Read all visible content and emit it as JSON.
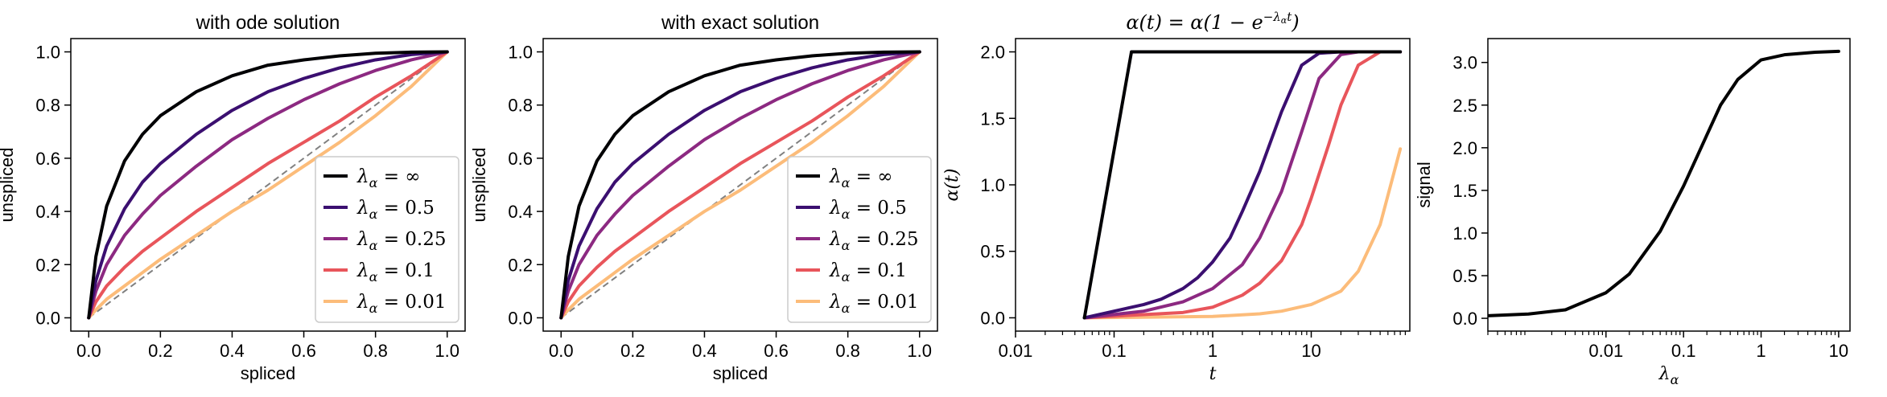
{
  "chart_data": [
    {
      "type": "line",
      "title": "with ode solution",
      "xlabel": "spliced",
      "ylabel": "unspliced",
      "xlim": [
        -0.05,
        1.05
      ],
      "ylim": [
        -0.05,
        1.05
      ],
      "xticks": [
        0,
        0.2,
        0.4,
        0.6,
        0.8,
        1.0
      ],
      "xtick_labels": [
        "0.0",
        "0.2",
        "0.4",
        "0.6",
        "0.8",
        "1.0"
      ],
      "yticks": [
        0,
        0.2,
        0.4,
        0.6,
        0.8,
        1.0
      ],
      "ytick_labels": [
        "0.0",
        "0.2",
        "0.4",
        "0.6",
        "0.8",
        "1.0"
      ],
      "grid": false,
      "legend_position": "lower right",
      "series": [
        {
          "name": "λα = ∞",
          "color": "#000004",
          "x": [
            0,
            0.02,
            0.05,
            0.1,
            0.15,
            0.2,
            0.3,
            0.4,
            0.5,
            0.6,
            0.7,
            0.8,
            0.9,
            1.0
          ],
          "y": [
            0,
            0.23,
            0.42,
            0.59,
            0.69,
            0.76,
            0.85,
            0.91,
            0.95,
            0.97,
            0.985,
            0.995,
            0.999,
            1.0
          ]
        },
        {
          "name": "λα = 0.5",
          "color": "#3b0f70",
          "x": [
            0,
            0.02,
            0.05,
            0.1,
            0.15,
            0.2,
            0.3,
            0.4,
            0.5,
            0.6,
            0.7,
            0.8,
            0.9,
            1.0
          ],
          "y": [
            0,
            0.14,
            0.27,
            0.41,
            0.51,
            0.58,
            0.69,
            0.78,
            0.85,
            0.9,
            0.94,
            0.97,
            0.99,
            1.0
          ]
        },
        {
          "name": "λα = 0.25",
          "color": "#8c2981",
          "x": [
            0,
            0.02,
            0.05,
            0.1,
            0.15,
            0.2,
            0.3,
            0.4,
            0.5,
            0.6,
            0.7,
            0.8,
            0.9,
            1.0
          ],
          "y": [
            0,
            0.1,
            0.2,
            0.31,
            0.39,
            0.46,
            0.57,
            0.67,
            0.75,
            0.82,
            0.88,
            0.93,
            0.97,
            1.0
          ]
        },
        {
          "name": "λα = 0.1",
          "color": "#e8555b",
          "x": [
            0,
            0.02,
            0.05,
            0.1,
            0.15,
            0.2,
            0.3,
            0.4,
            0.5,
            0.6,
            0.7,
            0.8,
            0.9,
            1.0
          ],
          "y": [
            0,
            0.06,
            0.12,
            0.19,
            0.25,
            0.3,
            0.4,
            0.49,
            0.58,
            0.66,
            0.74,
            0.83,
            0.91,
            1.0
          ]
        },
        {
          "name": "λα = 0.01",
          "color": "#fcbc7a",
          "x": [
            0,
            0.02,
            0.05,
            0.1,
            0.15,
            0.2,
            0.3,
            0.4,
            0.5,
            0.6,
            0.7,
            0.8,
            0.9,
            1.0
          ],
          "y": [
            0,
            0.03,
            0.07,
            0.12,
            0.17,
            0.22,
            0.31,
            0.4,
            0.48,
            0.57,
            0.66,
            0.76,
            0.87,
            1.0
          ]
        }
      ],
      "reference_line": {
        "color": "#808080",
        "dashed": true,
        "x": [
          0,
          1
        ],
        "y": [
          0,
          1
        ]
      }
    },
    {
      "type": "line",
      "title": "with exact solution",
      "xlabel": "spliced",
      "ylabel": "unspliced",
      "xlim": [
        -0.05,
        1.05
      ],
      "ylim": [
        -0.05,
        1.05
      ],
      "xticks": [
        0,
        0.2,
        0.4,
        0.6,
        0.8,
        1.0
      ],
      "xtick_labels": [
        "0.0",
        "0.2",
        "0.4",
        "0.6",
        "0.8",
        "1.0"
      ],
      "yticks": [
        0,
        0.2,
        0.4,
        0.6,
        0.8,
        1.0
      ],
      "ytick_labels": [
        "0.0",
        "0.2",
        "0.4",
        "0.6",
        "0.8",
        "1.0"
      ],
      "grid": false,
      "legend_position": "lower right",
      "series": [
        {
          "name": "λα = ∞",
          "color": "#000004",
          "x": [
            0,
            0.02,
            0.05,
            0.1,
            0.15,
            0.2,
            0.3,
            0.4,
            0.5,
            0.6,
            0.7,
            0.8,
            0.9,
            1.0
          ],
          "y": [
            0,
            0.23,
            0.42,
            0.59,
            0.69,
            0.76,
            0.85,
            0.91,
            0.95,
            0.97,
            0.985,
            0.995,
            0.999,
            1.0
          ]
        },
        {
          "name": "λα = 0.5",
          "color": "#3b0f70",
          "x": [
            0,
            0.02,
            0.05,
            0.1,
            0.15,
            0.2,
            0.3,
            0.4,
            0.5,
            0.6,
            0.7,
            0.8,
            0.9,
            1.0
          ],
          "y": [
            0,
            0.14,
            0.27,
            0.41,
            0.51,
            0.58,
            0.69,
            0.78,
            0.85,
            0.9,
            0.94,
            0.97,
            0.99,
            1.0
          ]
        },
        {
          "name": "λα = 0.25",
          "color": "#8c2981",
          "x": [
            0,
            0.02,
            0.05,
            0.1,
            0.15,
            0.2,
            0.3,
            0.4,
            0.5,
            0.6,
            0.7,
            0.8,
            0.9,
            1.0
          ],
          "y": [
            0,
            0.1,
            0.2,
            0.31,
            0.39,
            0.46,
            0.57,
            0.67,
            0.75,
            0.82,
            0.88,
            0.93,
            0.97,
            1.0
          ]
        },
        {
          "name": "λα = 0.1",
          "color": "#e8555b",
          "x": [
            0,
            0.02,
            0.05,
            0.1,
            0.15,
            0.2,
            0.3,
            0.4,
            0.5,
            0.6,
            0.7,
            0.8,
            0.9,
            1.0
          ],
          "y": [
            0,
            0.06,
            0.12,
            0.19,
            0.25,
            0.3,
            0.4,
            0.49,
            0.58,
            0.66,
            0.74,
            0.83,
            0.91,
            1.0
          ]
        },
        {
          "name": "λα = 0.01",
          "color": "#fcbc7a",
          "x": [
            0,
            0.02,
            0.05,
            0.1,
            0.15,
            0.2,
            0.3,
            0.4,
            0.5,
            0.6,
            0.7,
            0.8,
            0.9,
            1.0
          ],
          "y": [
            0,
            0.03,
            0.07,
            0.12,
            0.17,
            0.22,
            0.31,
            0.4,
            0.48,
            0.57,
            0.66,
            0.76,
            0.87,
            1.0
          ]
        }
      ],
      "reference_line": {
        "color": "#808080",
        "dashed": true,
        "x": [
          0,
          1
        ],
        "y": [
          0,
          1
        ]
      }
    },
    {
      "type": "line",
      "title": "α(t) = α(1 − e^(−λα t))",
      "xlabel": "t",
      "ylabel": "α(t)",
      "xscale": "log",
      "xlim": [
        0.01,
        100
      ],
      "ylim": [
        -0.1,
        2.1
      ],
      "xticks": [
        0.01,
        0.1,
        1,
        10
      ],
      "xtick_labels": [
        "0.01",
        "0.1",
        "1",
        "10"
      ],
      "yticks": [
        0,
        0.5,
        1.0,
        1.5,
        2.0
      ],
      "ytick_labels": [
        "0.0",
        "0.5",
        "1.0",
        "1.5",
        "2.0"
      ],
      "grid": false,
      "series": [
        {
          "name": "λα = ∞",
          "color": "#000004",
          "x": [
            0.05,
            0.15,
            0.2,
            1,
            10,
            80
          ],
          "y": [
            0,
            2.0,
            2.0,
            2.0,
            2.0,
            2.0
          ]
        },
        {
          "name": "λα = 0.5",
          "color": "#3b0f70",
          "x": [
            0.05,
            0.1,
            0.2,
            0.3,
            0.5,
            0.7,
            1,
            1.5,
            2,
            3,
            5,
            8,
            12,
            20,
            80
          ],
          "y": [
            0,
            0.05,
            0.1,
            0.14,
            0.22,
            0.3,
            0.42,
            0.6,
            0.8,
            1.1,
            1.55,
            1.9,
            1.99,
            2.0,
            2.0
          ]
        },
        {
          "name": "λα = 0.25",
          "color": "#8c2981",
          "x": [
            0.05,
            0.2,
            0.5,
            1,
            2,
            3,
            5,
            8,
            12,
            20,
            30,
            80
          ],
          "y": [
            0,
            0.05,
            0.12,
            0.22,
            0.4,
            0.6,
            0.95,
            1.4,
            1.8,
            1.98,
            2.0,
            2.0
          ]
        },
        {
          "name": "λα = 0.1",
          "color": "#e8555b",
          "x": [
            0.05,
            0.5,
            1,
            2,
            3,
            5,
            8,
            10,
            15,
            20,
            30,
            50,
            80
          ],
          "y": [
            0,
            0.04,
            0.08,
            0.17,
            0.26,
            0.43,
            0.7,
            0.9,
            1.3,
            1.6,
            1.9,
            2.0,
            2.0
          ]
        },
        {
          "name": "λα = 0.01",
          "color": "#fcbc7a",
          "x": [
            0.05,
            1,
            3,
            5,
            10,
            20,
            30,
            50,
            80
          ],
          "y": [
            0,
            0.01,
            0.03,
            0.05,
            0.1,
            0.2,
            0.35,
            0.7,
            1.27
          ]
        }
      ]
    },
    {
      "type": "line",
      "title": "",
      "xlabel": "λα",
      "ylabel": "signal",
      "xscale": "log",
      "xlim": [
        0.0003,
        14
      ],
      "ylim": [
        -0.15,
        3.28
      ],
      "xticks": [
        0.01,
        0.1,
        1,
        10
      ],
      "xtick_labels": [
        "0.01",
        "0.1",
        "1",
        "10"
      ],
      "yticks": [
        0,
        0.5,
        1.0,
        1.5,
        2.0,
        2.5,
        3.0
      ],
      "ytick_labels": [
        "0.0",
        "0.5",
        "1.0",
        "1.5",
        "2.0",
        "2.5",
        "3.0"
      ],
      "grid": false,
      "series": [
        {
          "name": "",
          "color": "#000000",
          "x": [
            0.0003,
            0.001,
            0.003,
            0.01,
            0.02,
            0.05,
            0.1,
            0.15,
            0.2,
            0.3,
            0.5,
            1,
            2,
            5,
            10
          ],
          "y": [
            0.03,
            0.05,
            0.1,
            0.3,
            0.52,
            1.02,
            1.55,
            1.9,
            2.15,
            2.5,
            2.8,
            3.03,
            3.09,
            3.12,
            3.13
          ]
        }
      ]
    }
  ],
  "legend_labels": [
    "λα = ∞",
    "λα = 0.5",
    "λα = 0.25",
    "λα = 0.1",
    "λα = 0.01"
  ]
}
